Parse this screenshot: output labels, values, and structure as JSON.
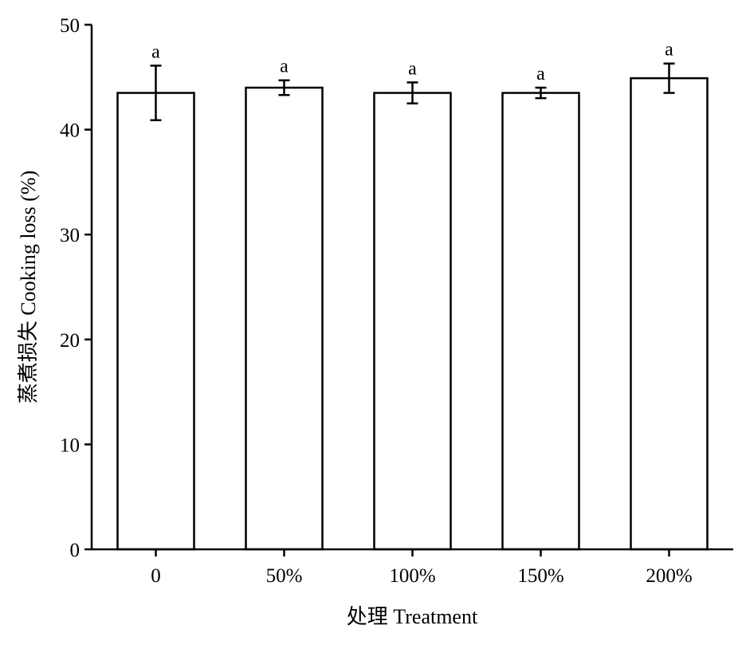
{
  "chart_data": {
    "type": "bar",
    "title": "",
    "xlabel": "处理 Treatment",
    "ylabel": "蒸煮损失 Cooking loss (%)",
    "categories": [
      "0",
      "50%",
      "100%",
      "150%",
      "200%"
    ],
    "values": [
      43.5,
      44.0,
      43.5,
      43.5,
      44.9
    ],
    "errors": [
      2.6,
      0.7,
      1.0,
      0.5,
      1.4
    ],
    "significance_letters": [
      "a",
      "a",
      "a",
      "a",
      "a"
    ],
    "ylim": [
      0,
      50
    ],
    "yticks": [
      "0",
      "10",
      "20",
      "30",
      "40",
      "50"
    ],
    "grid": false,
    "legend": "none",
    "colors": {
      "bar_fill": "#ffffff",
      "bar_stroke": "#000000",
      "error_bar": "#000000",
      "axis": "#000000"
    }
  }
}
